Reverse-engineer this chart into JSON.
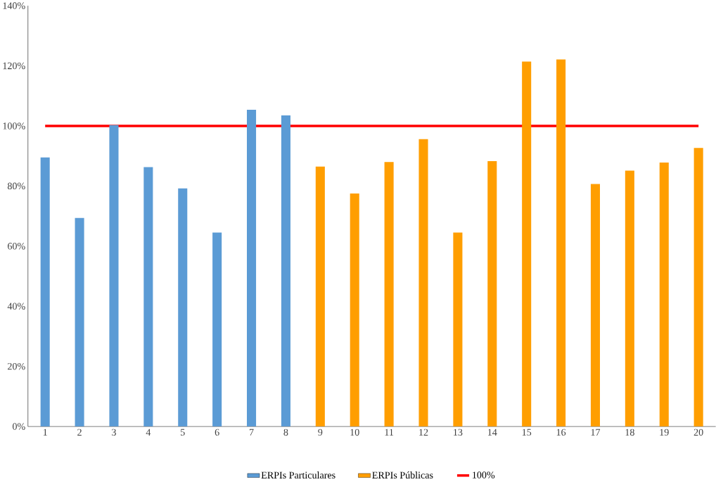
{
  "chart_data": {
    "type": "bar",
    "categories": [
      "1",
      "2",
      "3",
      "4",
      "5",
      "6",
      "7",
      "8",
      "9",
      "10",
      "11",
      "12",
      "13",
      "14",
      "15",
      "16",
      "17",
      "18",
      "19",
      "20"
    ],
    "series": [
      {
        "name": "ERPIs Particulares",
        "color": "#5b9bd5",
        "values": [
          89.5,
          69.4,
          100.3,
          86.3,
          79.2,
          64.5,
          105.4,
          103.5,
          null,
          null,
          null,
          null,
          null,
          null,
          null,
          null,
          null,
          null,
          null,
          null
        ]
      },
      {
        "name": "ERPIs Públicas",
        "color": "#ff9e00",
        "values": [
          null,
          null,
          null,
          null,
          null,
          null,
          null,
          null,
          86.5,
          77.5,
          88.0,
          95.6,
          64.5,
          88.3,
          121.4,
          122.1,
          80.7,
          85.1,
          87.8,
          92.7
        ]
      }
    ],
    "ref_lines": [
      {
        "axis": "y",
        "value": 100,
        "label": "100%",
        "color": "#ff0000"
      }
    ],
    "ylim": [
      0,
      140
    ],
    "yticks": [
      {
        "value": 0,
        "label": "0%"
      },
      {
        "value": 20,
        "label": "20%"
      },
      {
        "value": 40,
        "label": "40%"
      },
      {
        "value": 60,
        "label": "60%"
      },
      {
        "value": 80,
        "label": "80%"
      },
      {
        "value": 100,
        "label": "100%"
      },
      {
        "value": 120,
        "label": "120%"
      },
      {
        "value": 140,
        "label": "140%"
      }
    ],
    "grid": false,
    "legend": "bottom"
  }
}
